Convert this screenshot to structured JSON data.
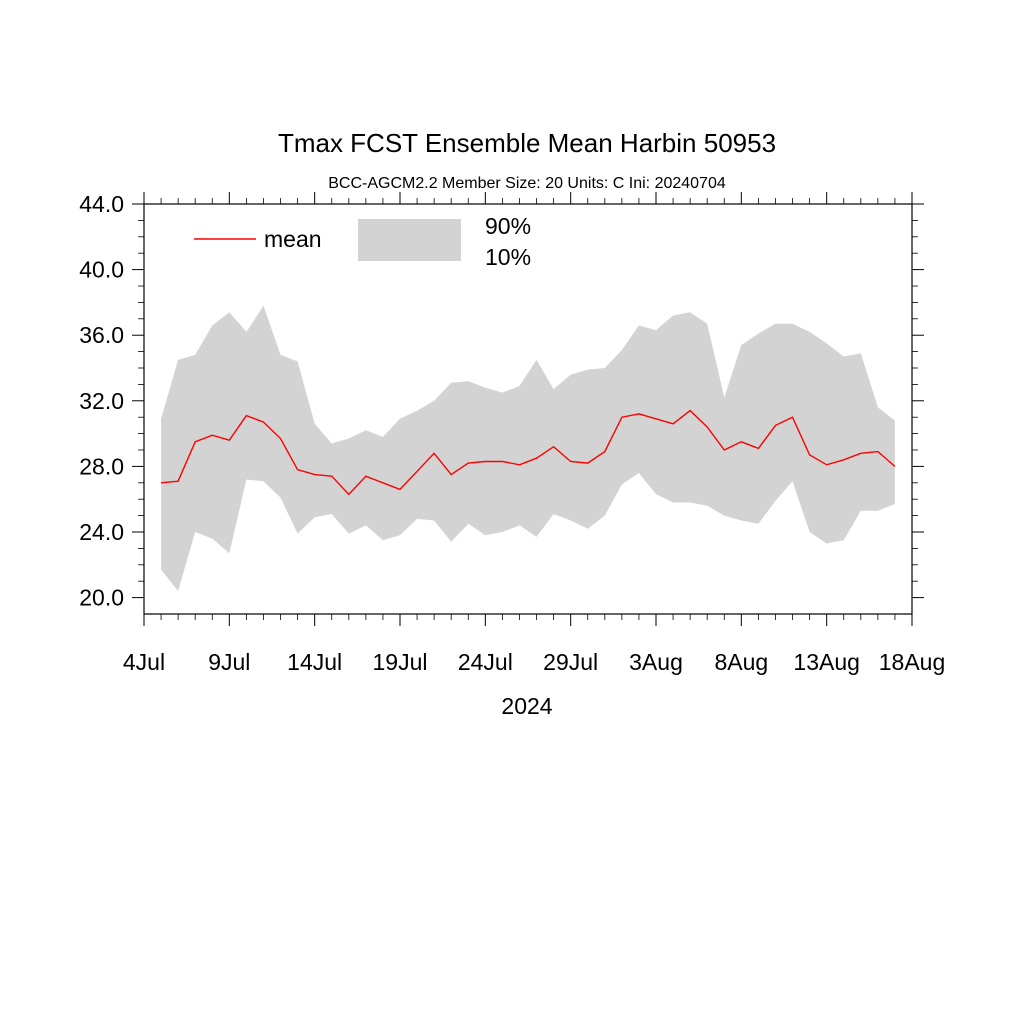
{
  "chart_data": {
    "type": "area",
    "title": "Tmax FCST Ensemble Mean  Harbin 50953",
    "subtitle": "BCC-AGCM2.2   Member Size: 20   Units: C   Ini: 20240704",
    "xlabel": "2024",
    "ylabel": "",
    "ylim": [
      19.0,
      44.0
    ],
    "yticks": [
      "20.0",
      "24.0",
      "28.0",
      "32.0",
      "36.0",
      "40.0",
      "44.0"
    ],
    "xlim": [
      "2024-07-04",
      "2024-08-18"
    ],
    "xticks": [
      "4Jul",
      "9Jul",
      "14Jul",
      "19Jul",
      "24Jul",
      "29Jul",
      "3Aug",
      "8Aug",
      "13Aug",
      "18Aug"
    ],
    "grid": false,
    "legend": {
      "position": "top-left",
      "mean_label": "mean",
      "band_upper_label": "90%",
      "band_lower_label": "10%"
    },
    "colors": {
      "mean": "#ff0000",
      "band": "#d3d3d3"
    },
    "x": [
      "2024-07-05",
      "2024-07-06",
      "2024-07-07",
      "2024-07-08",
      "2024-07-09",
      "2024-07-10",
      "2024-07-11",
      "2024-07-12",
      "2024-07-13",
      "2024-07-14",
      "2024-07-15",
      "2024-07-16",
      "2024-07-17",
      "2024-07-18",
      "2024-07-19",
      "2024-07-20",
      "2024-07-21",
      "2024-07-22",
      "2024-07-23",
      "2024-07-24",
      "2024-07-25",
      "2024-07-26",
      "2024-07-27",
      "2024-07-28",
      "2024-07-29",
      "2024-07-30",
      "2024-07-31",
      "2024-08-01",
      "2024-08-02",
      "2024-08-03",
      "2024-08-04",
      "2024-08-05",
      "2024-08-06",
      "2024-08-07",
      "2024-08-08",
      "2024-08-09",
      "2024-08-10",
      "2024-08-11",
      "2024-08-12",
      "2024-08-13",
      "2024-08-14",
      "2024-08-15",
      "2024-08-16",
      "2024-08-17"
    ],
    "series": [
      {
        "name": "mean",
        "values": [
          27.0,
          27.1,
          29.5,
          29.9,
          29.6,
          31.1,
          30.7,
          29.7,
          27.8,
          27.5,
          27.4,
          26.3,
          27.4,
          27.0,
          26.6,
          27.7,
          28.8,
          27.5,
          28.2,
          28.3,
          28.3,
          28.1,
          28.5,
          29.2,
          28.3,
          28.2,
          28.9,
          31.0,
          31.2,
          30.9,
          30.6,
          31.4,
          30.4,
          29.0,
          29.5,
          29.1,
          30.5,
          31.0,
          28.7,
          28.1,
          28.4,
          28.8,
          28.9,
          28.0
        ]
      },
      {
        "name": "90%",
        "values": [
          30.9,
          34.5,
          34.8,
          36.6,
          37.4,
          36.2,
          37.8,
          34.8,
          34.4,
          30.6,
          29.4,
          29.7,
          30.2,
          29.8,
          30.9,
          31.4,
          32.0,
          33.1,
          33.2,
          32.8,
          32.5,
          32.9,
          34.5,
          32.7,
          33.6,
          33.9,
          34.0,
          35.1,
          36.6,
          36.3,
          37.2,
          37.4,
          36.7,
          32.2,
          35.4,
          36.1,
          36.7,
          36.7,
          36.2,
          35.5,
          34.7,
          34.9,
          31.6,
          30.8
        ]
      },
      {
        "name": "10%",
        "values": [
          21.7,
          20.4,
          24.0,
          23.6,
          22.7,
          27.2,
          27.1,
          26.1,
          23.9,
          24.9,
          25.1,
          23.9,
          24.4,
          23.5,
          23.8,
          24.8,
          24.7,
          23.4,
          24.5,
          23.8,
          24.0,
          24.4,
          23.7,
          25.1,
          24.7,
          24.2,
          25.0,
          26.9,
          27.6,
          26.3,
          25.8,
          25.8,
          25.6,
          25.0,
          24.7,
          24.5,
          25.9,
          27.1,
          24.0,
          23.3,
          23.5,
          25.3,
          25.3,
          25.7
        ]
      }
    ]
  }
}
